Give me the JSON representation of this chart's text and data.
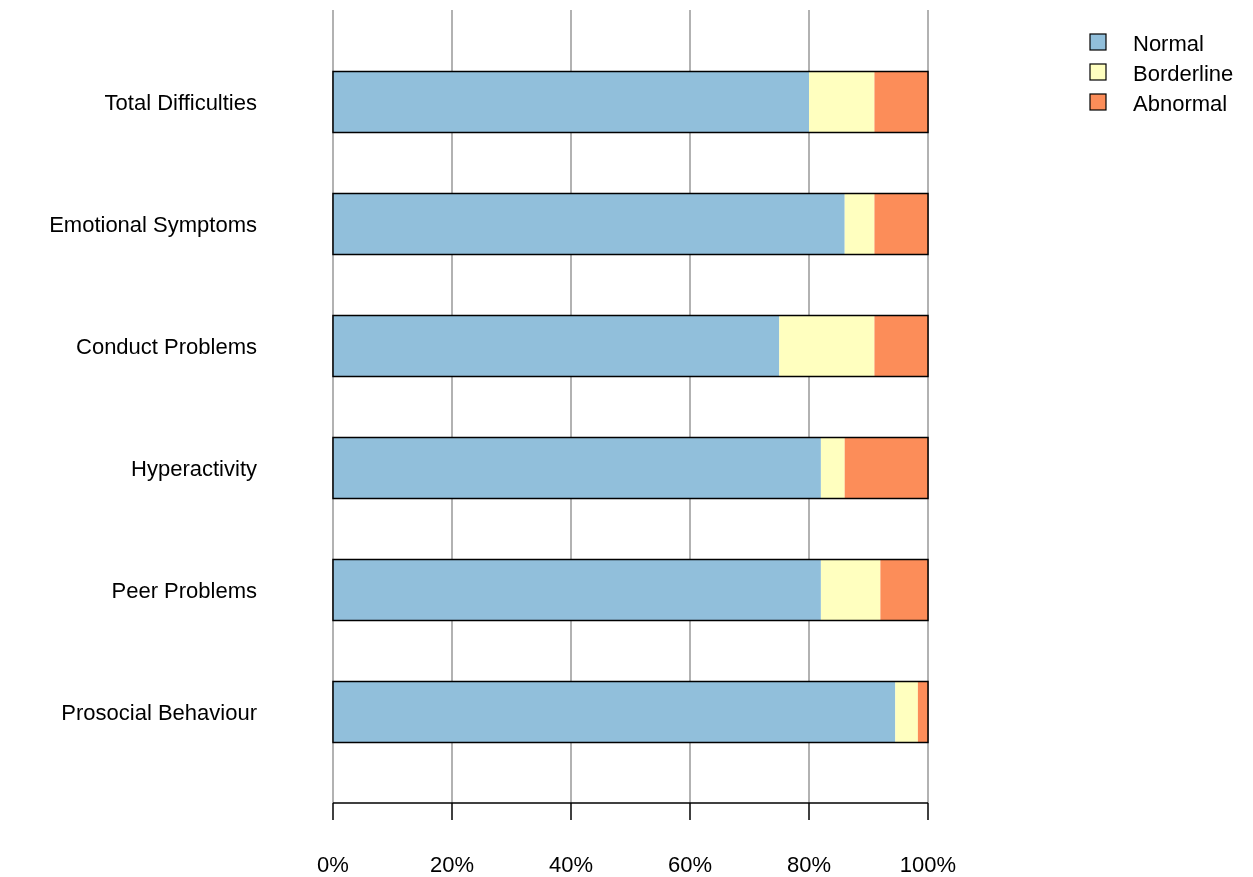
{
  "chart_data": {
    "type": "bar",
    "orientation": "horizontal",
    "stacked": true,
    "categories": [
      "Total Difficulties",
      "Emotional Symptoms",
      "Conduct Problems",
      "Hyperactivity",
      "Peer Problems",
      "Prosocial Behaviour"
    ],
    "series": [
      {
        "name": "Normal",
        "color": "#91bfdb",
        "values": [
          80,
          86,
          75,
          82,
          82,
          94.5
        ]
      },
      {
        "name": "Borderline",
        "color": "#ffffbf",
        "values": [
          11,
          5,
          16,
          4,
          10,
          3.8
        ]
      },
      {
        "name": "Abnormal",
        "color": "#fc8d59",
        "values": [
          9,
          9,
          9,
          14,
          8,
          1.7
        ]
      }
    ],
    "xlim": [
      0,
      100
    ],
    "xticks": [
      {
        "value": 0,
        "label": "0%"
      },
      {
        "value": 20,
        "label": "20%"
      },
      {
        "value": 40,
        "label": "40%"
      },
      {
        "value": 60,
        "label": "60%"
      },
      {
        "value": 80,
        "label": "80%"
      },
      {
        "value": 100,
        "label": "100%"
      }
    ],
    "grid": "x",
    "legend": "top right"
  }
}
